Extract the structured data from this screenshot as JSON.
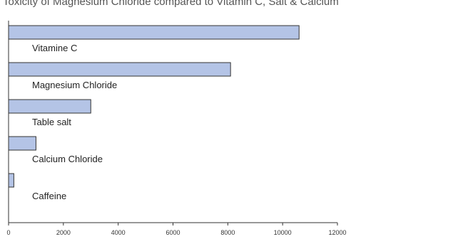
{
  "chart_data": {
    "type": "bar",
    "orientation": "horizontal",
    "title": "Toxicity of Magnesium Chloride compared to Vitamin C, Salt & Calcium",
    "categories": [
      "Vitamine C",
      "Magnesium Chloride",
      "Table salt",
      "Calcium Chloride",
      "Caffeine"
    ],
    "values": [
      10600,
      8100,
      3000,
      1000,
      192
    ],
    "xlim": [
      0,
      12000
    ],
    "xticks": [
      0,
      2000,
      4000,
      6000,
      8000,
      10000,
      12000
    ],
    "tick_labels": [
      "0",
      "2000",
      "4000",
      "6000",
      "8000",
      "10000",
      "12000"
    ],
    "xlabel": "",
    "ylabel": "",
    "grid": false,
    "legend": "none",
    "bar_color": "#b4c4e6",
    "bar_outline": "#333333"
  }
}
